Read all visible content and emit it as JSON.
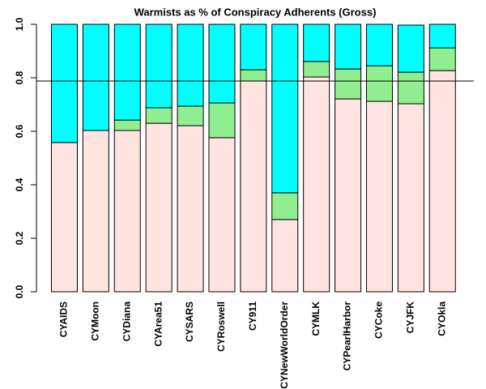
{
  "chart_data": {
    "type": "stacked-bar",
    "title": "Warmists as % of Conspiracy Adherents (Gross)",
    "categories": [
      "CYAIDS",
      "CYMoon",
      "CYDiana",
      "CYArea51",
      "CYSARS",
      "CYRoswell",
      "CY911",
      "CYNewWorldOrder",
      "CYMLK",
      "CYPearlHarbor",
      "CYCoke",
      "CYJFK",
      "CYOkla"
    ],
    "series": [
      {
        "color": "#ffe4e1",
        "values": [
          0.558,
          0.603,
          0.603,
          0.63,
          0.621,
          0.576,
          0.788,
          0.27,
          0.803,
          0.721,
          0.712,
          0.703,
          0.827
        ]
      },
      {
        "color": "#90ee90",
        "values": [
          0,
          0,
          0.039,
          0.058,
          0.073,
          0.13,
          0.042,
          0.1,
          0.058,
          0.112,
          0.133,
          0.118,
          0.085
        ]
      },
      {
        "color": "#00ffff",
        "values": [
          0.442,
          0.397,
          0.358,
          0.312,
          0.306,
          0.294,
          0.17,
          0.63,
          0.139,
          0.167,
          0.155,
          0.176,
          0.088
        ]
      }
    ],
    "hline": 0.788,
    "ylim": [
      0,
      1
    ],
    "yticks": [
      {
        "value": 0,
        "label": "0.0"
      },
      0.2,
      0.4,
      0.6,
      0.8,
      {
        "value": 1,
        "label": "1.0"
      }
    ]
  }
}
